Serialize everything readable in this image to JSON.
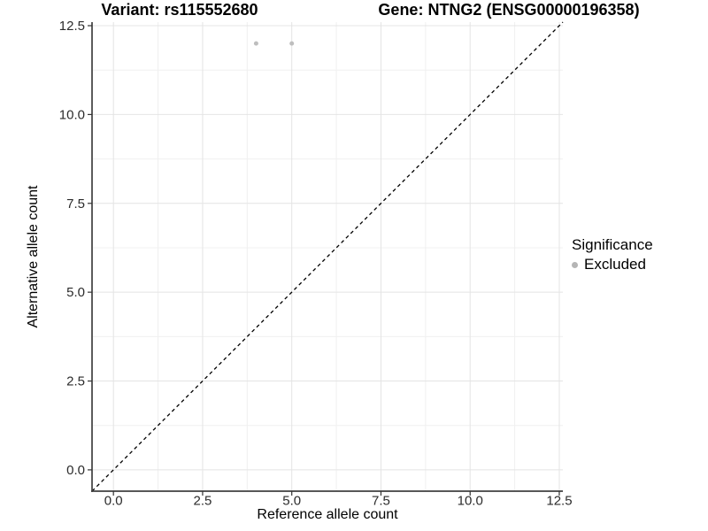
{
  "chart_data": {
    "type": "scatter",
    "title_left": "Variant: rs115552680",
    "title_right": "Gene: NTNG2 (ENSG00000196358)",
    "xlabel": "Reference allele count",
    "ylabel": "Alternative allele count",
    "xlim": [
      -0.6,
      12.6
    ],
    "ylim": [
      -0.6,
      12.6
    ],
    "grid": true,
    "x_ticks": {
      "values": [
        0,
        2.5,
        5,
        7.5,
        10,
        12.5
      ],
      "labels": [
        "0.0",
        "2.5",
        "5.0",
        "7.5",
        "10.0",
        "12.5"
      ]
    },
    "y_ticks": {
      "values": [
        0,
        2.5,
        5,
        7.5,
        10,
        12.5
      ],
      "labels": [
        "0.0",
        "2.5",
        "5.0",
        "7.5",
        "10.0",
        "12.5"
      ]
    },
    "minor_ticks": [
      1.25,
      3.75,
      6.25,
      8.75,
      11.25
    ],
    "series": [
      {
        "name": "Excluded",
        "color": "#bebebe",
        "points": [
          {
            "x": 4,
            "y": 12
          },
          {
            "x": 5,
            "y": 12
          }
        ]
      }
    ],
    "reference_line": {
      "slope": 1,
      "intercept": 0,
      "style": "dashed",
      "color": "#000000"
    },
    "legend": {
      "title": "Significance",
      "position": "right",
      "entries": [
        {
          "label": "Excluded",
          "color": "#b5b5b5"
        }
      ]
    },
    "colors": {
      "grid_major": "#e4e4e4",
      "grid_minor": "#f0f0f0",
      "axis_line": "#404040",
      "tick_mark": "#333333",
      "tick_label": "#2b2b2b",
      "point": "#bebebe"
    }
  }
}
